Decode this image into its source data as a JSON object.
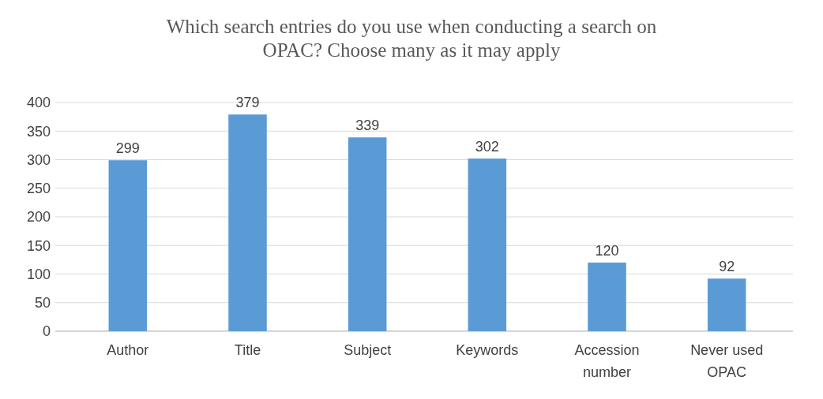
{
  "chart_data": {
    "type": "bar",
    "title": "Which search entries do you use when conducting a search on OPAC? Choose many as it may apply",
    "categories": [
      "Author",
      "Title",
      "Subject",
      "Keywords",
      "Accession number",
      "Never used OPAC"
    ],
    "values": [
      299,
      379,
      339,
      302,
      120,
      92
    ],
    "color": "#5b9bd5",
    "ylim": [
      0,
      400
    ],
    "yticks": [
      0,
      50,
      100,
      150,
      200,
      250,
      300,
      350,
      400
    ],
    "grid": "y",
    "data_labels": true
  }
}
